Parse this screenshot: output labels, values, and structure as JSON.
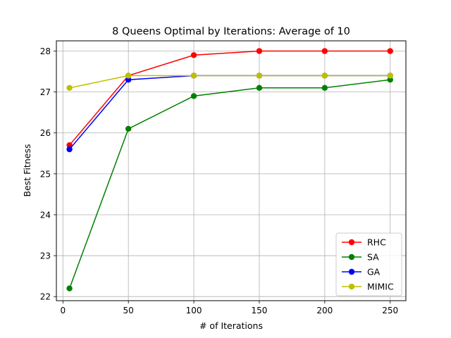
{
  "chart_data": {
    "type": "line",
    "title": "8 Queens Optimal by Iterations: Average of 10",
    "xlabel": "# of Iterations",
    "ylabel": "Best Fitness",
    "xlim": [
      -5,
      262
    ],
    "ylim": [
      21.9,
      28.25
    ],
    "xticks": [
      0,
      50,
      100,
      150,
      200,
      250
    ],
    "yticks": [
      22,
      23,
      24,
      25,
      26,
      27,
      28
    ],
    "grid": true,
    "legend_position": "bottom-right",
    "x": [
      5,
      50,
      100,
      150,
      200,
      250
    ],
    "series": [
      {
        "name": "RHC",
        "color": "#ff0000",
        "values": [
          25.7,
          27.4,
          27.9,
          28.0,
          28.0,
          28.0
        ]
      },
      {
        "name": "SA",
        "color": "#008000",
        "values": [
          22.2,
          26.1,
          26.9,
          27.1,
          27.1,
          27.3
        ]
      },
      {
        "name": "GA",
        "color": "#0000ff",
        "values": [
          25.6,
          27.3,
          27.4,
          27.4,
          27.4,
          27.4
        ]
      },
      {
        "name": "MIMIC",
        "color": "#bfbf00",
        "values": [
          27.1,
          27.4,
          27.4,
          27.4,
          27.4,
          27.4
        ]
      }
    ]
  }
}
